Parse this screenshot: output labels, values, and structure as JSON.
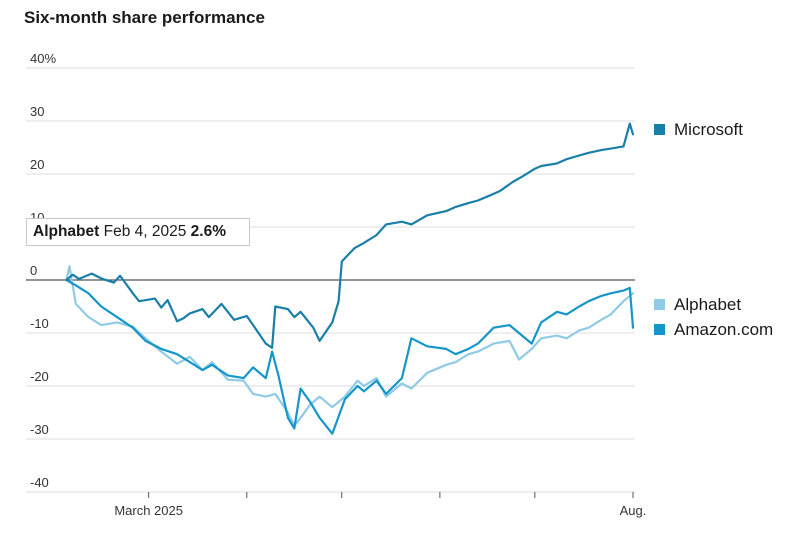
{
  "title": "Six-month share performance",
  "chart_data": {
    "type": "line",
    "title": "Six-month share performance",
    "y_unit": "%",
    "ylim": [
      -40,
      40
    ],
    "y_ticks": [
      {
        "value": 40,
        "label": "40%"
      },
      {
        "value": 30,
        "label": "30"
      },
      {
        "value": 20,
        "label": "20"
      },
      {
        "value": 10,
        "label": "10"
      },
      {
        "value": 0,
        "label": "0"
      },
      {
        "value": -10,
        "label": "-10"
      },
      {
        "value": -20,
        "label": "-20"
      },
      {
        "value": -30,
        "label": "-30"
      },
      {
        "value": -40,
        "label": "-40"
      }
    ],
    "x_range": [
      "2025-02-01",
      "2025-08-01"
    ],
    "x_ticks": [
      {
        "date": "2025-03-01",
        "label": "March 2025"
      },
      {
        "date": "2025-04-01",
        "label": ""
      },
      {
        "date": "2025-05-01",
        "label": ""
      },
      {
        "date": "2025-06-01",
        "label": ""
      },
      {
        "date": "2025-07-01",
        "label": ""
      },
      {
        "date": "2025-08-01",
        "label": "Aug."
      }
    ],
    "grid": true,
    "legend": "right",
    "series": [
      {
        "name": "Microsoft",
        "color": "#1a7fa8",
        "points": [
          [
            "2025-02-03",
            0.0
          ],
          [
            "2025-02-05",
            1.0
          ],
          [
            "2025-02-07",
            0.2
          ],
          [
            "2025-02-11",
            1.2
          ],
          [
            "2025-02-14",
            0.3
          ],
          [
            "2025-02-18",
            -0.5
          ],
          [
            "2025-02-20",
            0.8
          ],
          [
            "2025-02-24",
            -2.5
          ],
          [
            "2025-02-26",
            -4.0
          ],
          [
            "2025-03-03",
            -3.5
          ],
          [
            "2025-03-05",
            -5.2
          ],
          [
            "2025-03-07",
            -3.8
          ],
          [
            "2025-03-10",
            -7.8
          ],
          [
            "2025-03-12",
            -7.2
          ],
          [
            "2025-03-14",
            -6.3
          ],
          [
            "2025-03-18",
            -5.5
          ],
          [
            "2025-03-20",
            -7.0
          ],
          [
            "2025-03-24",
            -4.5
          ],
          [
            "2025-03-26",
            -6.0
          ],
          [
            "2025-03-28",
            -7.5
          ],
          [
            "2025-04-01",
            -6.8
          ],
          [
            "2025-04-03",
            -8.5
          ],
          [
            "2025-04-07",
            -12.0
          ],
          [
            "2025-04-09",
            -12.8
          ],
          [
            "2025-04-10",
            -5.0
          ],
          [
            "2025-04-14",
            -5.5
          ],
          [
            "2025-04-16",
            -7.0
          ],
          [
            "2025-04-18",
            -6.0
          ],
          [
            "2025-04-22",
            -9.0
          ],
          [
            "2025-04-24",
            -11.5
          ],
          [
            "2025-04-28",
            -8.0
          ],
          [
            "2025-04-30",
            -4.0
          ],
          [
            "2025-05-01",
            3.5
          ],
          [
            "2025-05-05",
            6.0
          ],
          [
            "2025-05-08",
            7.0
          ],
          [
            "2025-05-12",
            8.5
          ],
          [
            "2025-05-15",
            10.5
          ],
          [
            "2025-05-20",
            11.0
          ],
          [
            "2025-05-23",
            10.5
          ],
          [
            "2025-05-28",
            12.2
          ],
          [
            "2025-06-03",
            13.0
          ],
          [
            "2025-06-06",
            13.8
          ],
          [
            "2025-06-10",
            14.5
          ],
          [
            "2025-06-13",
            15.0
          ],
          [
            "2025-06-17",
            16.0
          ],
          [
            "2025-06-20",
            16.8
          ],
          [
            "2025-06-24",
            18.5
          ],
          [
            "2025-06-27",
            19.5
          ],
          [
            "2025-07-01",
            21.0
          ],
          [
            "2025-07-03",
            21.5
          ],
          [
            "2025-07-08",
            22.0
          ],
          [
            "2025-07-11",
            22.8
          ],
          [
            "2025-07-15",
            23.5
          ],
          [
            "2025-07-18",
            24.0
          ],
          [
            "2025-07-22",
            24.5
          ],
          [
            "2025-07-25",
            24.8
          ],
          [
            "2025-07-29",
            25.2
          ],
          [
            "2025-07-31",
            29.5
          ],
          [
            "2025-08-01",
            27.5
          ]
        ]
      },
      {
        "name": "Alphabet",
        "color": "#8fcae6",
        "points": [
          [
            "2025-02-03",
            0.0
          ],
          [
            "2025-02-04",
            2.6
          ],
          [
            "2025-02-06",
            -4.5
          ],
          [
            "2025-02-10",
            -7.0
          ],
          [
            "2025-02-14",
            -8.5
          ],
          [
            "2025-02-19",
            -8.0
          ],
          [
            "2025-02-24",
            -8.8
          ],
          [
            "2025-02-28",
            -11.0
          ],
          [
            "2025-03-05",
            -13.5
          ],
          [
            "2025-03-10",
            -15.8
          ],
          [
            "2025-03-14",
            -14.5
          ],
          [
            "2025-03-18",
            -17.0
          ],
          [
            "2025-03-21",
            -15.5
          ],
          [
            "2025-03-26",
            -18.8
          ],
          [
            "2025-03-31",
            -19.0
          ],
          [
            "2025-04-03",
            -21.5
          ],
          [
            "2025-04-07",
            -22.0
          ],
          [
            "2025-04-10",
            -21.5
          ],
          [
            "2025-04-14",
            -25.0
          ],
          [
            "2025-04-16",
            -27.5
          ],
          [
            "2025-04-18",
            -26.0
          ],
          [
            "2025-04-21",
            -23.5
          ],
          [
            "2025-04-24",
            -22.0
          ],
          [
            "2025-04-28",
            -24.0
          ],
          [
            "2025-05-02",
            -22.0
          ],
          [
            "2025-05-06",
            -19.0
          ],
          [
            "2025-05-08",
            -20.0
          ],
          [
            "2025-05-12",
            -18.5
          ],
          [
            "2025-05-15",
            -22.0
          ],
          [
            "2025-05-20",
            -19.5
          ],
          [
            "2025-05-23",
            -20.5
          ],
          [
            "2025-05-28",
            -17.5
          ],
          [
            "2025-06-03",
            -16.0
          ],
          [
            "2025-06-06",
            -15.5
          ],
          [
            "2025-06-10",
            -14.0
          ],
          [
            "2025-06-13",
            -13.5
          ],
          [
            "2025-06-18",
            -12.0
          ],
          [
            "2025-06-23",
            -11.5
          ],
          [
            "2025-06-26",
            -15.0
          ],
          [
            "2025-06-30",
            -13.0
          ],
          [
            "2025-07-03",
            -11.0
          ],
          [
            "2025-07-08",
            -10.5
          ],
          [
            "2025-07-11",
            -11.0
          ],
          [
            "2025-07-15",
            -9.5
          ],
          [
            "2025-07-18",
            -9.0
          ],
          [
            "2025-07-22",
            -7.5
          ],
          [
            "2025-07-25",
            -6.5
          ],
          [
            "2025-07-29",
            -4.0
          ],
          [
            "2025-08-01",
            -2.5
          ]
        ]
      },
      {
        "name": "Amazon.com",
        "color": "#1496c9",
        "points": [
          [
            "2025-02-03",
            0.0
          ],
          [
            "2025-02-06",
            -1.0
          ],
          [
            "2025-02-10",
            -2.5
          ],
          [
            "2025-02-14",
            -5.0
          ],
          [
            "2025-02-19",
            -7.0
          ],
          [
            "2025-02-24",
            -9.0
          ],
          [
            "2025-02-28",
            -11.5
          ],
          [
            "2025-03-05",
            -13.0
          ],
          [
            "2025-03-10",
            -14.0
          ],
          [
            "2025-03-14",
            -15.5
          ],
          [
            "2025-03-18",
            -17.0
          ],
          [
            "2025-03-21",
            -16.0
          ],
          [
            "2025-03-26",
            -18.0
          ],
          [
            "2025-03-31",
            -18.5
          ],
          [
            "2025-04-03",
            -16.5
          ],
          [
            "2025-04-07",
            -18.5
          ],
          [
            "2025-04-09",
            -13.5
          ],
          [
            "2025-04-11",
            -18.0
          ],
          [
            "2025-04-14",
            -26.0
          ],
          [
            "2025-04-16",
            -28.0
          ],
          [
            "2025-04-18",
            -20.5
          ],
          [
            "2025-04-21",
            -23.0
          ],
          [
            "2025-04-24",
            -26.0
          ],
          [
            "2025-04-28",
            -29.0
          ],
          [
            "2025-05-02",
            -22.5
          ],
          [
            "2025-05-06",
            -20.0
          ],
          [
            "2025-05-08",
            -21.0
          ],
          [
            "2025-05-12",
            -19.0
          ],
          [
            "2025-05-15",
            -21.5
          ],
          [
            "2025-05-20",
            -18.5
          ],
          [
            "2025-05-23",
            -11.0
          ],
          [
            "2025-05-28",
            -12.5
          ],
          [
            "2025-06-03",
            -13.0
          ],
          [
            "2025-06-06",
            -14.0
          ],
          [
            "2025-06-10",
            -13.0
          ],
          [
            "2025-06-13",
            -12.0
          ],
          [
            "2025-06-18",
            -9.0
          ],
          [
            "2025-06-23",
            -8.5
          ],
          [
            "2025-06-26",
            -10.0
          ],
          [
            "2025-06-30",
            -12.0
          ],
          [
            "2025-07-03",
            -8.0
          ],
          [
            "2025-07-08",
            -6.0
          ],
          [
            "2025-07-11",
            -6.5
          ],
          [
            "2025-07-15",
            -5.0
          ],
          [
            "2025-07-18",
            -4.0
          ],
          [
            "2025-07-22",
            -3.0
          ],
          [
            "2025-07-25",
            -2.5
          ],
          [
            "2025-07-29",
            -2.0
          ],
          [
            "2025-07-31",
            -1.5
          ],
          [
            "2025-08-01",
            -9.0
          ]
        ]
      }
    ]
  },
  "tooltip": {
    "series": "Alphabet",
    "date": "Feb 4, 2025",
    "value": "2.6%"
  }
}
